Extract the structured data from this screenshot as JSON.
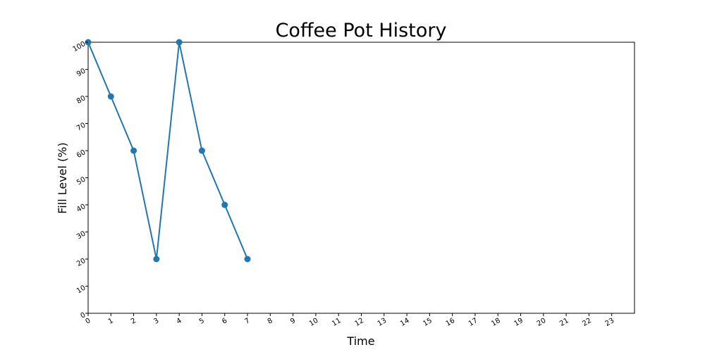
{
  "chart_data": {
    "type": "line",
    "title": "Coffee Pot History",
    "xlabel": "Time",
    "ylabel": "Fill Level (%)",
    "xlim": [
      0,
      24
    ],
    "ylim": [
      0,
      100
    ],
    "xticks": [
      0,
      1,
      2,
      3,
      4,
      5,
      6,
      7,
      8,
      9,
      10,
      11,
      12,
      13,
      14,
      15,
      16,
      17,
      18,
      19,
      20,
      21,
      22,
      23
    ],
    "yticks": [
      0,
      10,
      20,
      30,
      40,
      50,
      60,
      70,
      80,
      90,
      100
    ],
    "grid": false,
    "series": [
      {
        "x": [
          0,
          1,
          2,
          3,
          4,
          5,
          6,
          7
        ],
        "y": [
          100,
          80,
          60,
          20,
          100,
          60,
          40,
          20
        ],
        "color": "#1f77b4",
        "marker": "circle"
      }
    ]
  }
}
